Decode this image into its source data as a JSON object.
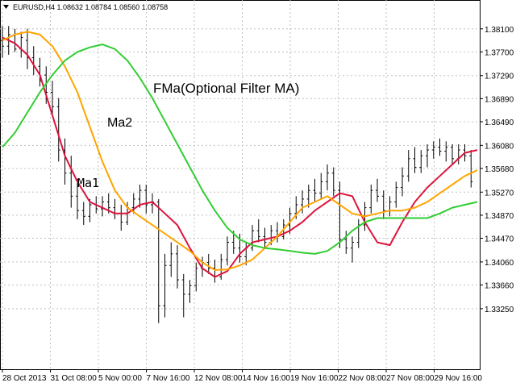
{
  "header": {
    "symbol_icon": "triangle-down-icon",
    "symbol_line": "EURUSD,H4  1.08632 1.08784 1.08560 1.08758"
  },
  "chart_data": {
    "type": "line",
    "title": "",
    "symbol": "EURUSD",
    "timeframe": "H4",
    "quote": {
      "open": 1.08632,
      "high": 1.08784,
      "low": 1.0856,
      "close": 1.08758
    },
    "ylim": [
      1.322,
      1.386
    ],
    "y_ticks": [
      "1.38100",
      "1.37700",
      "1.37290",
      "1.36890",
      "1.36490",
      "1.36080",
      "1.35680",
      "1.35270",
      "1.34870",
      "1.34470",
      "1.34060",
      "1.33660",
      "1.33250"
    ],
    "x_ticks": [
      "28 Oct 2013",
      "31 Oct 08:00",
      "5 Nov 00:00",
      "7 Nov 16:00",
      "12 Nov 08:00",
      "14 Nov 16:00",
      "19 Nov 16:00",
      "22 Nov 08:00",
      "27 Nov 08:00",
      "29 Nov 16:00"
    ],
    "grid": true,
    "annotations": [
      "FMa(Optional Filter MA)",
      "Ma2",
      "Ma1"
    ],
    "colors": {
      "background": "#ffffff",
      "bars": "#000000",
      "grid": "#c0c0c0",
      "ma1": "#dc143c",
      "ma2": "#ffa500",
      "fma": "#32cd32"
    },
    "series": [
      {
        "name": "Ma1",
        "x": [
          0,
          4,
          8,
          12,
          16,
          20,
          24,
          28,
          32,
          36,
          40,
          44,
          48,
          52,
          56,
          60,
          64,
          68,
          72,
          76,
          80,
          84,
          88,
          92,
          96,
          100,
          104,
          108,
          112,
          116,
          120,
          124,
          128,
          132,
          136,
          140,
          144,
          148,
          152
        ],
        "y": [
          1.3795,
          1.3785,
          1.3765,
          1.373,
          1.366,
          1.359,
          1.3545,
          1.351,
          1.35,
          1.349,
          1.349,
          1.3505,
          1.351,
          1.349,
          1.347,
          1.343,
          1.3395,
          1.338,
          1.339,
          1.342,
          1.344,
          1.3445,
          1.345,
          1.346,
          1.3475,
          1.3495,
          1.351,
          1.3525,
          1.352,
          1.3475,
          1.344,
          1.3435,
          1.3475,
          1.351,
          1.3535,
          1.3555,
          1.3575,
          1.3595,
          1.36
        ]
      },
      {
        "name": "Ma2",
        "x": [
          0,
          4,
          8,
          12,
          16,
          20,
          24,
          28,
          32,
          36,
          40,
          44,
          48,
          52,
          56,
          60,
          64,
          68,
          72,
          76,
          80,
          84,
          88,
          92,
          96,
          100,
          104,
          108,
          112,
          116,
          120,
          124,
          128,
          132,
          136,
          140,
          144,
          148,
          152
        ],
        "y": [
          1.379,
          1.38,
          1.3805,
          1.38,
          1.378,
          1.3745,
          1.37,
          1.364,
          1.358,
          1.353,
          1.35,
          1.3485,
          1.347,
          1.3455,
          1.344,
          1.3425,
          1.3405,
          1.3392,
          1.3393,
          1.34,
          1.341,
          1.343,
          1.345,
          1.3475,
          1.35,
          1.351,
          1.352,
          1.3505,
          1.349,
          1.3485,
          1.349,
          1.3495,
          1.3495,
          1.35,
          1.351,
          1.3525,
          1.354,
          1.3555,
          1.3565
        ]
      },
      {
        "name": "FMa(Optional Filter MA)",
        "x": [
          0,
          4,
          8,
          12,
          16,
          20,
          24,
          28,
          32,
          36,
          40,
          44,
          48,
          52,
          56,
          60,
          64,
          68,
          72,
          76,
          80,
          84,
          88,
          92,
          96,
          100,
          104,
          108,
          112,
          116,
          120,
          124,
          128,
          132,
          136,
          140,
          144,
          148,
          152
        ],
        "y": [
          1.3605,
          1.363,
          1.3665,
          1.37,
          1.373,
          1.3755,
          1.377,
          1.3778,
          1.3783,
          1.3775,
          1.3755,
          1.3725,
          1.369,
          1.365,
          1.361,
          1.357,
          1.353,
          1.3495,
          1.3465,
          1.3445,
          1.3435,
          1.343,
          1.3428,
          1.3425,
          1.3422,
          1.342,
          1.3425,
          1.344,
          1.346,
          1.3475,
          1.3482,
          1.3482,
          1.3482,
          1.3482,
          1.3482,
          1.349,
          1.35,
          1.3505,
          1.351
        ]
      }
    ],
    "candles": [
      {
        "x": 0,
        "o": 1.379,
        "h": 1.3815,
        "l": 1.376,
        "c": 1.378
      },
      {
        "x": 2,
        "o": 1.378,
        "h": 1.3815,
        "l": 1.3765,
        "c": 1.38
      },
      {
        "x": 4,
        "o": 1.38,
        "h": 1.381,
        "l": 1.377,
        "c": 1.3775
      },
      {
        "x": 6,
        "o": 1.3775,
        "h": 1.3805,
        "l": 1.376,
        "c": 1.3795
      },
      {
        "x": 8,
        "o": 1.379,
        "h": 1.381,
        "l": 1.374,
        "c": 1.376
      },
      {
        "x": 10,
        "o": 1.376,
        "h": 1.378,
        "l": 1.373,
        "c": 1.3745
      },
      {
        "x": 12,
        "o": 1.3745,
        "h": 1.376,
        "l": 1.371,
        "c": 1.372
      },
      {
        "x": 14,
        "o": 1.373,
        "h": 1.3745,
        "l": 1.368,
        "c": 1.37
      },
      {
        "x": 16,
        "o": 1.37,
        "h": 1.372,
        "l": 1.366,
        "c": 1.3675
      },
      {
        "x": 18,
        "o": 1.3675,
        "h": 1.369,
        "l": 1.358,
        "c": 1.36
      },
      {
        "x": 20,
        "o": 1.36,
        "h": 1.362,
        "l": 1.354,
        "c": 1.356
      },
      {
        "x": 22,
        "o": 1.356,
        "h": 1.359,
        "l": 1.35,
        "c": 1.352
      },
      {
        "x": 24,
        "o": 1.352,
        "h": 1.355,
        "l": 1.348,
        "c": 1.3495
      },
      {
        "x": 26,
        "o": 1.3495,
        "h": 1.351,
        "l": 1.347,
        "c": 1.3485
      },
      {
        "x": 28,
        "o": 1.3485,
        "h": 1.3515,
        "l": 1.3475,
        "c": 1.3505
      },
      {
        "x": 30,
        "o": 1.3505,
        "h": 1.352,
        "l": 1.349,
        "c": 1.3498
      },
      {
        "x": 32,
        "o": 1.3498,
        "h": 1.352,
        "l": 1.3485,
        "c": 1.351
      },
      {
        "x": 34,
        "o": 1.351,
        "h": 1.3525,
        "l": 1.349,
        "c": 1.35
      },
      {
        "x": 36,
        "o": 1.35,
        "h": 1.3515,
        "l": 1.348,
        "c": 1.349
      },
      {
        "x": 38,
        "o": 1.349,
        "h": 1.3505,
        "l": 1.346,
        "c": 1.3475
      },
      {
        "x": 40,
        "o": 1.3475,
        "h": 1.351,
        "l": 1.347,
        "c": 1.35
      },
      {
        "x": 42,
        "o": 1.35,
        "h": 1.3525,
        "l": 1.349,
        "c": 1.3515
      },
      {
        "x": 44,
        "o": 1.3515,
        "h": 1.354,
        "l": 1.35,
        "c": 1.353
      },
      {
        "x": 46,
        "o": 1.353,
        "h": 1.354,
        "l": 1.349,
        "c": 1.3505
      },
      {
        "x": 48,
        "o": 1.3505,
        "h": 1.3525,
        "l": 1.349,
        "c": 1.351
      },
      {
        "x": 50,
        "o": 1.351,
        "h": 1.3515,
        "l": 1.33,
        "c": 1.333
      },
      {
        "x": 52,
        "o": 1.333,
        "h": 1.342,
        "l": 1.331,
        "c": 1.34
      },
      {
        "x": 54,
        "o": 1.34,
        "h": 1.344,
        "l": 1.338,
        "c": 1.342
      },
      {
        "x": 56,
        "o": 1.342,
        "h": 1.3435,
        "l": 1.336,
        "c": 1.3375
      },
      {
        "x": 58,
        "o": 1.3375,
        "h": 1.3385,
        "l": 1.331,
        "c": 1.335
      },
      {
        "x": 60,
        "o": 1.335,
        "h": 1.3375,
        "l": 1.3335,
        "c": 1.3365
      },
      {
        "x": 62,
        "o": 1.3365,
        "h": 1.3405,
        "l": 1.3355,
        "c": 1.3395
      },
      {
        "x": 64,
        "o": 1.3395,
        "h": 1.3415,
        "l": 1.338,
        "c": 1.3405
      },
      {
        "x": 66,
        "o": 1.3405,
        "h": 1.342,
        "l": 1.3385,
        "c": 1.3395
      },
      {
        "x": 68,
        "o": 1.3395,
        "h": 1.341,
        "l": 1.337,
        "c": 1.338
      },
      {
        "x": 70,
        "o": 1.338,
        "h": 1.342,
        "l": 1.3375,
        "c": 1.341
      },
      {
        "x": 72,
        "o": 1.341,
        "h": 1.345,
        "l": 1.34,
        "c": 1.344
      },
      {
        "x": 74,
        "o": 1.344,
        "h": 1.346,
        "l": 1.342,
        "c": 1.343
      },
      {
        "x": 76,
        "o": 1.343,
        "h": 1.3455,
        "l": 1.3405,
        "c": 1.3415
      },
      {
        "x": 78,
        "o": 1.3415,
        "h": 1.344,
        "l": 1.34,
        "c": 1.343
      },
      {
        "x": 80,
        "o": 1.343,
        "h": 1.347,
        "l": 1.3425,
        "c": 1.346
      },
      {
        "x": 82,
        "o": 1.346,
        "h": 1.348,
        "l": 1.344,
        "c": 1.345
      },
      {
        "x": 84,
        "o": 1.345,
        "h": 1.3465,
        "l": 1.343,
        "c": 1.344
      },
      {
        "x": 86,
        "o": 1.344,
        "h": 1.347,
        "l": 1.3435,
        "c": 1.346
      },
      {
        "x": 88,
        "o": 1.346,
        "h": 1.3475,
        "l": 1.344,
        "c": 1.345
      },
      {
        "x": 90,
        "o": 1.345,
        "h": 1.348,
        "l": 1.3445,
        "c": 1.347
      },
      {
        "x": 92,
        "o": 1.347,
        "h": 1.35,
        "l": 1.3455,
        "c": 1.349
      },
      {
        "x": 94,
        "o": 1.349,
        "h": 1.352,
        "l": 1.348,
        "c": 1.3505
      },
      {
        "x": 96,
        "o": 1.3505,
        "h": 1.353,
        "l": 1.349,
        "c": 1.3515
      },
      {
        "x": 98,
        "o": 1.3515,
        "h": 1.354,
        "l": 1.35,
        "c": 1.353
      },
      {
        "x": 100,
        "o": 1.353,
        "h": 1.355,
        "l": 1.351,
        "c": 1.3525
      },
      {
        "x": 102,
        "o": 1.3525,
        "h": 1.356,
        "l": 1.3515,
        "c": 1.3545
      },
      {
        "x": 104,
        "o": 1.3545,
        "h": 1.3575,
        "l": 1.353,
        "c": 1.356
      },
      {
        "x": 106,
        "o": 1.356,
        "h": 1.357,
        "l": 1.352,
        "c": 1.353
      },
      {
        "x": 108,
        "o": 1.353,
        "h": 1.3545,
        "l": 1.343,
        "c": 1.3445
      },
      {
        "x": 110,
        "o": 1.3445,
        "h": 1.346,
        "l": 1.342,
        "c": 1.343
      },
      {
        "x": 112,
        "o": 1.343,
        "h": 1.345,
        "l": 1.3405,
        "c": 1.344
      },
      {
        "x": 114,
        "o": 1.344,
        "h": 1.348,
        "l": 1.343,
        "c": 1.347
      },
      {
        "x": 116,
        "o": 1.347,
        "h": 1.351,
        "l": 1.346,
        "c": 1.35
      },
      {
        "x": 118,
        "o": 1.35,
        "h": 1.354,
        "l": 1.349,
        "c": 1.353
      },
      {
        "x": 120,
        "o": 1.353,
        "h": 1.355,
        "l": 1.351,
        "c": 1.352
      },
      {
        "x": 122,
        "o": 1.352,
        "h": 1.353,
        "l": 1.348,
        "c": 1.3495
      },
      {
        "x": 124,
        "o": 1.3495,
        "h": 1.352,
        "l": 1.3485,
        "c": 1.351
      },
      {
        "x": 126,
        "o": 1.351,
        "h": 1.3545,
        "l": 1.35,
        "c": 1.3535
      },
      {
        "x": 128,
        "o": 1.3535,
        "h": 1.357,
        "l": 1.352,
        "c": 1.3555
      },
      {
        "x": 130,
        "o": 1.3555,
        "h": 1.36,
        "l": 1.3545,
        "c": 1.3585
      },
      {
        "x": 132,
        "o": 1.3585,
        "h": 1.3605,
        "l": 1.356,
        "c": 1.357
      },
      {
        "x": 134,
        "o": 1.357,
        "h": 1.36,
        "l": 1.356,
        "c": 1.359
      },
      {
        "x": 136,
        "o": 1.359,
        "h": 1.361,
        "l": 1.357,
        "c": 1.36
      },
      {
        "x": 138,
        "o": 1.36,
        "h": 1.3615,
        "l": 1.3585,
        "c": 1.3605
      },
      {
        "x": 140,
        "o": 1.3605,
        "h": 1.362,
        "l": 1.359,
        "c": 1.3598
      },
      {
        "x": 142,
        "o": 1.3598,
        "h": 1.3615,
        "l": 1.358,
        "c": 1.3605
      },
      {
        "x": 144,
        "o": 1.3605,
        "h": 1.361,
        "l": 1.3575,
        "c": 1.3585
      },
      {
        "x": 146,
        "o": 1.3585,
        "h": 1.361,
        "l": 1.3575,
        "c": 1.36
      },
      {
        "x": 148,
        "o": 1.36,
        "h": 1.361,
        "l": 1.358,
        "c": 1.359
      },
      {
        "x": 150,
        "o": 1.359,
        "h": 1.36,
        "l": 1.3535,
        "c": 1.3545
      }
    ]
  }
}
